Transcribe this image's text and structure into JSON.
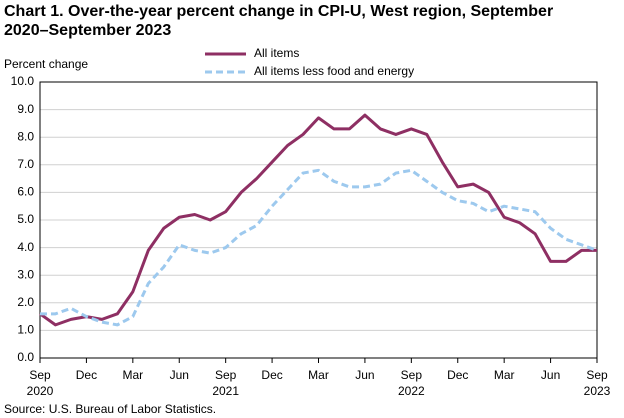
{
  "chart_data": {
    "type": "line",
    "title": "Chart 1. Over-the-year percent change in CPI-U, West region, September 2020–September 2023",
    "y_label": "Percent change",
    "source": "Source: U.S. Bureau of Labor Statistics.",
    "categories": [
      "Sep",
      null,
      null,
      "Dec",
      null,
      null,
      "Mar",
      null,
      null,
      "Jun",
      null,
      null,
      "Sep",
      null,
      null,
      "Dec",
      null,
      null,
      "Mar",
      null,
      null,
      "Jun",
      null,
      null,
      "Sep",
      null,
      null,
      "Dec",
      null,
      null,
      "Mar",
      null,
      null,
      "Jun",
      null,
      null,
      "Sep"
    ],
    "category_years": [
      "2020",
      null,
      null,
      null,
      null,
      null,
      null,
      null,
      null,
      null,
      null,
      null,
      "2021",
      null,
      null,
      null,
      null,
      null,
      null,
      null,
      null,
      null,
      null,
      null,
      "2022",
      null,
      null,
      null,
      null,
      null,
      null,
      null,
      null,
      null,
      null,
      null,
      "2023"
    ],
    "series": [
      {
        "name": "All items",
        "color": "#8e2f63",
        "dashed": false,
        "values": [
          1.6,
          1.2,
          1.4,
          1.5,
          1.4,
          1.6,
          2.4,
          3.9,
          4.7,
          5.1,
          5.2,
          5.0,
          5.3,
          6.0,
          6.5,
          7.1,
          7.7,
          8.1,
          8.7,
          8.3,
          8.3,
          8.8,
          8.3,
          8.1,
          8.3,
          8.1,
          7.1,
          6.2,
          6.3,
          6.0,
          5.1,
          4.9,
          4.5,
          3.5,
          3.5,
          3.9,
          3.9
        ]
      },
      {
        "name": "All items less food and energy",
        "color": "#9dc9ee",
        "dashed": true,
        "values": [
          1.6,
          1.6,
          1.8,
          1.5,
          1.3,
          1.2,
          1.5,
          2.7,
          3.3,
          4.1,
          3.9,
          3.8,
          4.0,
          4.5,
          4.8,
          5.5,
          6.1,
          6.7,
          6.8,
          6.4,
          6.2,
          6.2,
          6.3,
          6.7,
          6.8,
          6.4,
          6.0,
          5.7,
          5.6,
          5.3,
          5.5,
          5.4,
          5.3,
          4.7,
          4.3,
          4.1,
          3.9
        ]
      }
    ],
    "ylim": [
      0,
      10
    ],
    "yticks": [
      {
        "value": 0,
        "label": "0.0"
      },
      {
        "value": 1,
        "label": "1.0"
      },
      {
        "value": 2,
        "label": "2.0"
      },
      {
        "value": 3,
        "label": "3.0"
      },
      {
        "value": 4,
        "label": "4.0"
      },
      {
        "value": 5,
        "label": "5.0"
      },
      {
        "value": 6,
        "label": "6.0"
      },
      {
        "value": 7,
        "label": "7.0"
      },
      {
        "value": 8,
        "label": "8.0"
      },
      {
        "value": 9,
        "label": "9.0"
      },
      {
        "value": 10,
        "label": "10.0"
      }
    ],
    "grid": true
  }
}
